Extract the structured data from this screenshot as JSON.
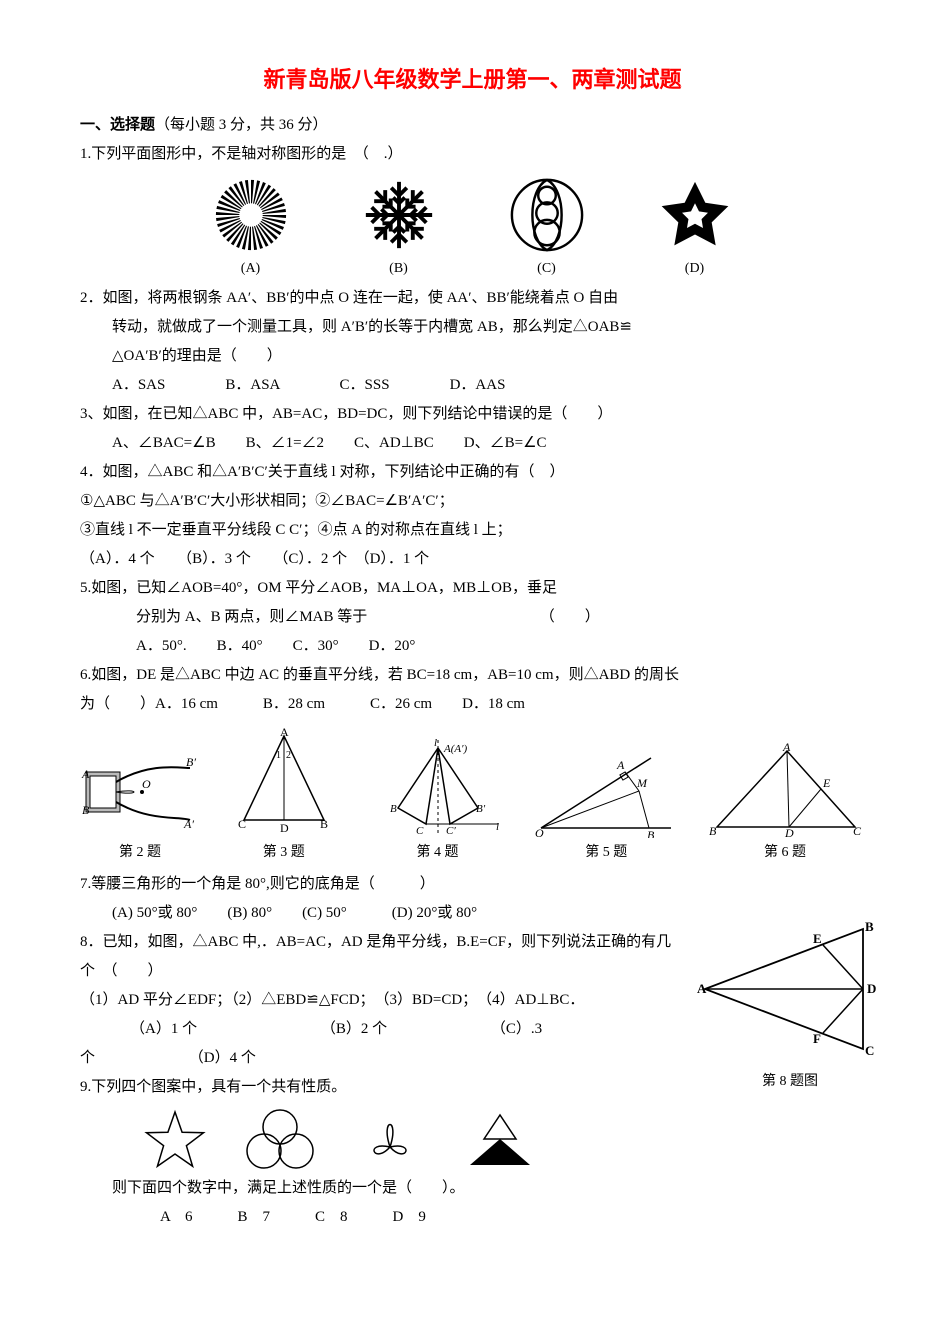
{
  "title": "新青岛版八年级数学上册第一、两章测试题",
  "section1": {
    "heading": "一、选择题",
    "scoring": "（每小题 3 分，共 36 分）"
  },
  "q1": {
    "text": "1.下列平面图形中，不是轴对称图形的是　（　.）",
    "optA": "(A)",
    "optB": "(B)",
    "optC": "(C)",
    "optD": "(D)"
  },
  "q2": {
    "line1": "2．如图，将两根钢条 AA′、BB′的中点 O 连在一起，使 AA′、BB′能绕着点 O 自由",
    "line2": "转动，就做成了一个测量工具，则 A′B′的长等于内槽宽 AB，那么判定△OAB≌",
    "line3": "△OA′B′的理由是（　　）",
    "opts": "A．SAS　　　　B．ASA　　　　C．SSS　　　　D．AAS"
  },
  "q3": {
    "line1": "3、如图，在已知△ABC 中，AB=AC，BD=DC，则下列结论中错误的是（　　）",
    "opts": "A、∠BAC=∠B　　B、∠1=∠2　　C、AD⊥BC　　D、∠B=∠C"
  },
  "q4": {
    "line1": "4．如图，△ABC 和△A′B′C′关于直线 l 对称，下列结论中正确的有（　）",
    "line2": "①△ABC 与△A′B′C′大小形状相同；②∠BAC=∠B′A′C′；",
    "line3": "③直线 l 不一定垂直平分线段 C C′；④点 A 的对称点在直线 l 上；",
    "opts": "（A）．4 个　　（B）．3 个　　（C）．2 个　（D）．1 个"
  },
  "q5": {
    "line1": "5.如图，已知∠AOB=40°，OM 平分∠AOB，MA⊥OA，MB⊥OB，垂足",
    "line2": "分别为 A、B 两点，则∠MAB 等于　　　　　　　　　　　　（　　）",
    "opts": "A．50°.　　B．40°　　C．30°　　D．20°"
  },
  "q6": {
    "line1": "6.如图，DE 是△ABC 中边 AC 的垂直平分线，若 BC=18 cm，AB=10 cm，则△ABD 的周长",
    "line2": "为（　　）A．16 cm　　　B．28 cm　　　C．26 cm　　D．18 cm"
  },
  "figcaps": {
    "c2": "第 2 题",
    "c3": "第 3 题",
    "c4": "第 4 题",
    "c5": "第 5 题",
    "c6": "第 6 题"
  },
  "q7": {
    "line1": "7.等腰三角形的一个角是 80°,则它的底角是（　　　）",
    "opts": "(A) 50°或 80°　　(B) 80°　　(C) 50°　　　(D) 20°或 80°"
  },
  "q8": {
    "line1": "8．已知，如图，△ABC 中,．AB=AC，AD 是角平分线，B.E=CF，则下列说法正确的有几",
    "line2": "个　（　　）",
    "line3": "（1）AD 平分∠EDF；（2）△EBD≌△FCD；　（3）BD=CD；　（4）AD⊥BC．",
    "line4a": "（A）1 个",
    "line4b": "（B）2 个",
    "line4c": "（C）.3",
    "line5a": "个",
    "line5b": "（D）4 个",
    "figcap": "第 8 题图"
  },
  "q9": {
    "line1": "9.下列四个图案中，具有一个共有性质。",
    "line2": "则下面四个数字中，满足上述性质的一个是（　　）。",
    "opts": "A　6　　　B　7　　　C　8　　　D　9"
  },
  "colors": {
    "title": "#ff0000",
    "text": "#000000",
    "bg": "#ffffff"
  }
}
